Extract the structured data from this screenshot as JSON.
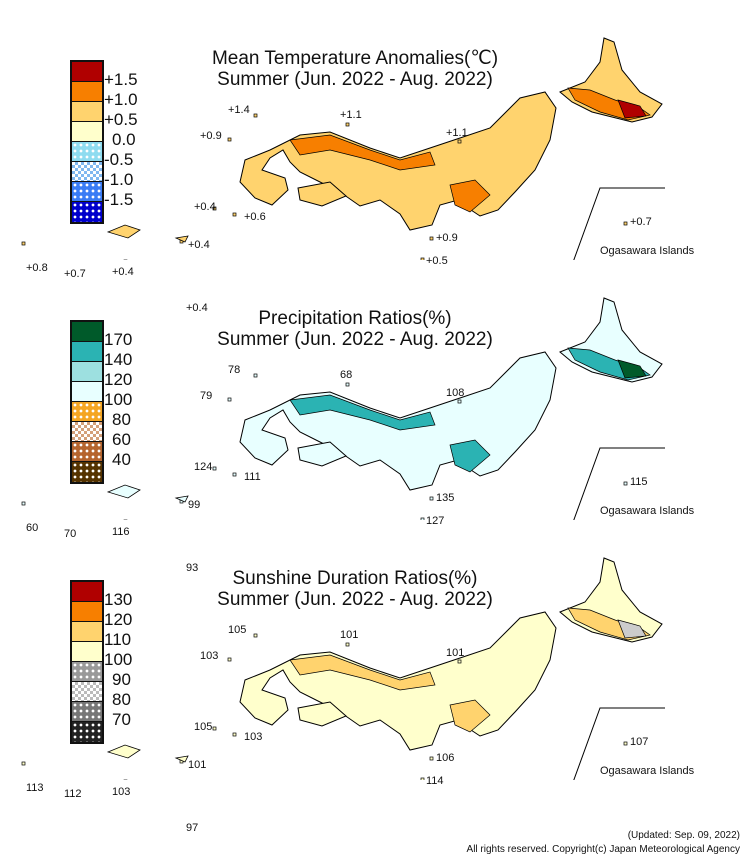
{
  "panels": [
    {
      "title1": "Mean Temperature Anomalies(℃)",
      "title2": "Summer (Jun. 2022 - Aug. 2022)",
      "legend": {
        "colors": [
          "#b00000",
          "#f77f00",
          "#ffd36e",
          "#ffffcc",
          "dots:#8fdcf0",
          "check:#80b8f0",
          "dots:#3a7cf5",
          "dots:#0000cc"
        ],
        "labels": [
          "+1.5",
          "+1.0",
          "+0.5",
          "0.0",
          "-0.5",
          "-1.0",
          "-1.5"
        ]
      },
      "base_fill": "#ffd36e",
      "accent": "#f77f00",
      "accent2": "#b00000",
      "stations": [
        "+1.4",
        "+1.1",
        "+0.9",
        "+1.1",
        "+0.4",
        "+0.6",
        "+0.9",
        "+0.5",
        "+0.7",
        "+0.8",
        "+0.7",
        "+0.4",
        "+0.4",
        "+0.4"
      ],
      "ogasawara": "Ogasawara Islands"
    },
    {
      "title1": "Precipitation Ratios(%)",
      "title2": "Summer (Jun. 2022 - Aug. 2022)",
      "legend": {
        "colors": [
          "#005a2a",
          "#2bb3b3",
          "#9de0e0",
          "#e8ffff",
          "dots:#f5a623",
          "check:#d4a07a",
          "dots:#b5652e",
          "dots:#553300"
        ],
        "labels": [
          "170",
          "140",
          "120",
          "100",
          "80",
          "60",
          "40"
        ]
      },
      "base_fill": "#e8ffff",
      "accent": "#2bb3b3",
      "accent2": "#005a2a",
      "stations": [
        "78",
        "68",
        "79",
        "108",
        "124",
        "111",
        "135",
        "127",
        "115",
        "60",
        "70",
        "116",
        "99",
        "93"
      ],
      "ogasawara": "Ogasawara Islands"
    },
    {
      "title1": "Sunshine Duration Ratios(%)",
      "title2": "Summer (Jun. 2022 - Aug. 2022)",
      "legend": {
        "colors": [
          "#b00000",
          "#f77f00",
          "#ffd36e",
          "#ffffcc",
          "dots:#999999",
          "check:#bbbbbb",
          "dots:#777777",
          "dots:#222222"
        ],
        "labels": [
          "130",
          "120",
          "110",
          "100",
          "90",
          "80",
          "70"
        ]
      },
      "base_fill": "#ffffcc",
      "accent": "#ffd36e",
      "accent2": "#cccccc",
      "stations": [
        "105",
        "101",
        "103",
        "101",
        "105",
        "103",
        "106",
        "114",
        "107",
        "113",
        "112",
        "103",
        "101",
        "97"
      ],
      "ogasawara": "Ogasawara Islands"
    }
  ],
  "footer": {
    "updated": "(Updated: Sep. 09, 2022)",
    "copyright": "All rights reserved. Copyright(c) Japan Meteorological Agency"
  }
}
